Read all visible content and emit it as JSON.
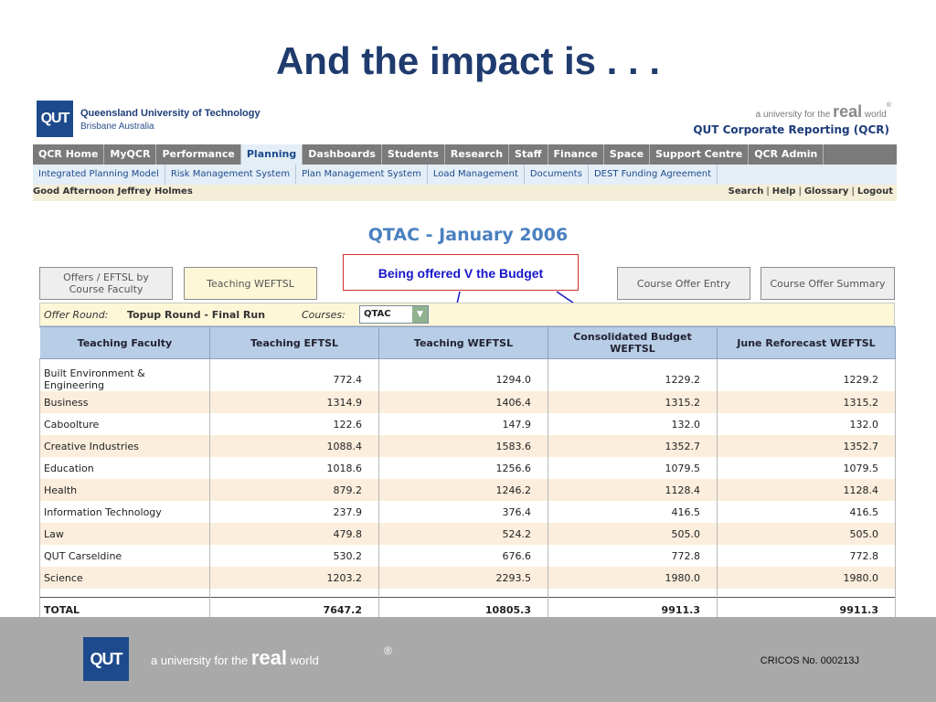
{
  "slide": {
    "title": "And the impact is . . ."
  },
  "header": {
    "logo": "QUT",
    "university_name": "Queensland University of Technology",
    "university_sub": "Brisbane Australia",
    "tagline_pre": "a university for the",
    "tagline_real": "real",
    "tagline_post": "world",
    "tagline_reg": "®",
    "app_title": "QUT Corporate Reporting (QCR)"
  },
  "main_nav": [
    {
      "label": "QCR Home"
    },
    {
      "label": "MyQCR"
    },
    {
      "label": "Performance"
    },
    {
      "label": "Planning",
      "active": true
    },
    {
      "label": "Dashboards"
    },
    {
      "label": "Students"
    },
    {
      "label": "Research"
    },
    {
      "label": "Staff"
    },
    {
      "label": "Finance"
    },
    {
      "label": "Space"
    },
    {
      "label": "Support Centre"
    },
    {
      "label": "QCR Admin"
    }
  ],
  "sub_nav": [
    {
      "label": "Integrated Planning Model"
    },
    {
      "label": "Risk Management System"
    },
    {
      "label": "Plan Management System"
    },
    {
      "label": "Load Management"
    },
    {
      "label": "Documents"
    },
    {
      "label": "DEST Funding Agreement"
    }
  ],
  "greeting": "Good Afternoon Jeffrey Holmes",
  "util_links": {
    "search": "Search",
    "help": "Help",
    "glossary": "Glossary",
    "logout": "Logout"
  },
  "report_title": "QTAC - January 2006",
  "tabs": {
    "offers_line1": "Offers / EFTSL by",
    "offers_line2": "Course Faculty",
    "teaching_wefstl": "Teaching WEFTSL",
    "course_offer_entry": "Course Offer Entry",
    "course_offer_summary": "Course Offer Summary"
  },
  "callout": "Being offered V the Budget",
  "filter": {
    "offer_round_label": "Offer Round:",
    "offer_round_value": "Topup Round - Final Run",
    "courses_label": "Courses:",
    "courses_value": "QTAC"
  },
  "table": {
    "headers": [
      "Teaching Faculty",
      "Teaching EFTSL",
      "Teaching WEFTSL",
      "Consolidated Budget WEFTSL",
      "June Reforecast WEFTSL"
    ],
    "rows": [
      [
        "Built Environment & Engineering",
        "772.4",
        "1294.0",
        "1229.2",
        "1229.2"
      ],
      [
        "Business",
        "1314.9",
        "1406.4",
        "1315.2",
        "1315.2"
      ],
      [
        "Caboolture",
        "122.6",
        "147.9",
        "132.0",
        "132.0"
      ],
      [
        "Creative Industries",
        "1088.4",
        "1583.6",
        "1352.7",
        "1352.7"
      ],
      [
        "Education",
        "1018.6",
        "1256.6",
        "1079.5",
        "1079.5"
      ],
      [
        "Health",
        "879.2",
        "1246.2",
        "1128.4",
        "1128.4"
      ],
      [
        "Information Technology",
        "237.9",
        "376.4",
        "416.5",
        "416.5"
      ],
      [
        "Law",
        "479.8",
        "524.2",
        "505.0",
        "505.0"
      ],
      [
        "QUT Carseldine",
        "530.2",
        "676.6",
        "772.8",
        "772.8"
      ],
      [
        "Science",
        "1203.2",
        "2293.5",
        "1980.0",
        "1980.0"
      ]
    ],
    "total": [
      "TOTAL",
      "7647.2",
      "10805.3",
      "9911.3",
      "9911.3"
    ]
  },
  "footer": {
    "logo": "QUT",
    "tag_pre": "a university for the",
    "tag_real": "real",
    "tag_post": "world",
    "tag_reg": "®",
    "cricos": "CRICOS No. 000213J"
  }
}
